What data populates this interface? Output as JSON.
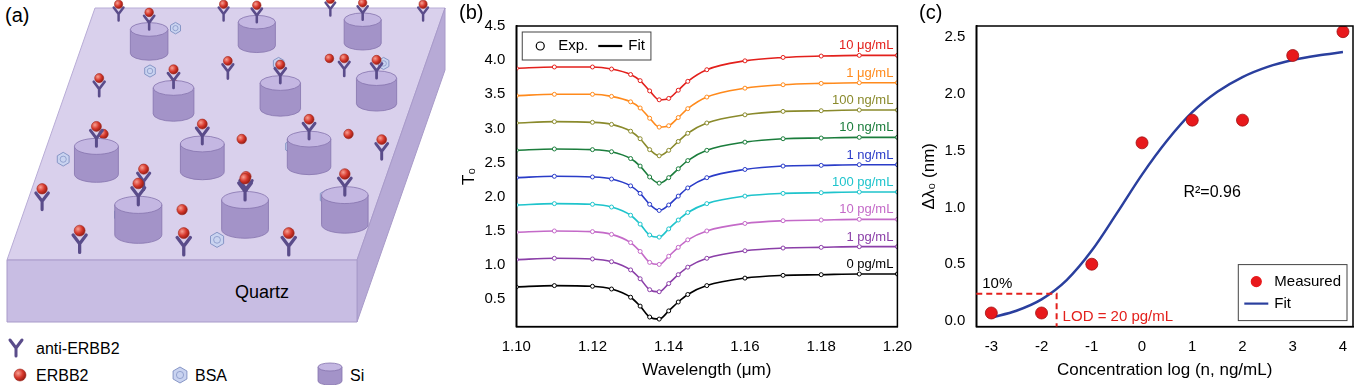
{
  "diagram": {
    "panel_label": "(a)",
    "substrate": "Quartz",
    "legend": [
      {
        "label": "anti-ERBB2"
      },
      {
        "label": "ERBB2"
      },
      {
        "label": "BSA"
      },
      {
        "label": "Si"
      }
    ]
  },
  "chart_data": [
    {
      "type": "line",
      "title": "(b)",
      "x_label": "Wavelength (μm)",
      "y_label": "T₀",
      "x": [
        1.1,
        1.11,
        1.12,
        1.125,
        1.13,
        1.1325,
        1.135,
        1.1375,
        1.14,
        1.1425,
        1.145,
        1.15,
        1.16,
        1.17,
        1.18,
        1.19,
        1.2
      ],
      "xlim": [
        1.1,
        1.2
      ],
      "xticks": [
        {
          "value": 1.1,
          "label": "1.10"
        },
        1.12,
        1.14,
        1.16,
        1.18,
        {
          "value": 1.2,
          "label": "1.20"
        }
      ],
      "ylim": [
        0.1,
        4.5
      ],
      "yticks": [
        0.5,
        {
          "value": 1,
          "label": "1.0"
        },
        1.5,
        {
          "value": 2,
          "label": "2.0"
        },
        2.5,
        {
          "value": 3,
          "label": "3.0"
        },
        3.5,
        {
          "value": 4,
          "label": "4.0"
        },
        4.5
      ],
      "grid": false,
      "legend": "upper left",
      "legend_entries": [
        {
          "name": "Exp.",
          "marker": "circle"
        },
        {
          "name": "Fit",
          "line_style": "solid"
        }
      ],
      "series": [
        {
          "name": "0 pg/mL",
          "color": "#000000",
          "marker": "circle",
          "line_style": "solid",
          "values": [
            0.68,
            0.7,
            0.69,
            0.65,
            0.53,
            0.4,
            0.24,
            0.21,
            0.33,
            0.46,
            0.57,
            0.7,
            0.81,
            0.85,
            0.86,
            0.87,
            0.87
          ]
        },
        {
          "name": "1 pg/mL",
          "color": "#8b3fa8",
          "marker": "circle",
          "line_style": "solid",
          "values": [
            1.08,
            1.1,
            1.09,
            1.05,
            0.93,
            0.8,
            0.64,
            0.61,
            0.73,
            0.86,
            0.97,
            1.1,
            1.21,
            1.25,
            1.26,
            1.27,
            1.27
          ]
        },
        {
          "name": "10 pg/mL",
          "color": "#c46ac8",
          "marker": "circle",
          "line_style": "solid",
          "values": [
            1.48,
            1.5,
            1.49,
            1.45,
            1.33,
            1.2,
            1.04,
            1.01,
            1.13,
            1.26,
            1.37,
            1.5,
            1.61,
            1.65,
            1.66,
            1.67,
            1.67
          ]
        },
        {
          "name": "100 pg/mL",
          "color": "#1fc4cc",
          "marker": "circle",
          "line_style": "solid",
          "values": [
            1.88,
            1.9,
            1.89,
            1.85,
            1.73,
            1.6,
            1.44,
            1.41,
            1.53,
            1.66,
            1.77,
            1.9,
            2.01,
            2.05,
            2.06,
            2.07,
            2.07
          ]
        },
        {
          "name": "1 ng/mL",
          "color": "#2a3cc8",
          "marker": "circle",
          "line_style": "solid",
          "values": [
            2.28,
            2.3,
            2.29,
            2.26,
            2.16,
            2.05,
            1.89,
            1.8,
            1.88,
            2.01,
            2.13,
            2.28,
            2.4,
            2.45,
            2.46,
            2.47,
            2.47
          ]
        },
        {
          "name": "10 ng/mL",
          "color": "#1b7d3c",
          "marker": "circle",
          "line_style": "solid",
          "values": [
            2.68,
            2.7,
            2.69,
            2.66,
            2.56,
            2.45,
            2.29,
            2.2,
            2.28,
            2.41,
            2.53,
            2.68,
            2.8,
            2.85,
            2.86,
            2.87,
            2.87
          ]
        },
        {
          "name": "100 ng/mL",
          "color": "#8a8a2c",
          "marker": "circle",
          "line_style": "solid",
          "values": [
            3.08,
            3.1,
            3.09,
            3.06,
            2.96,
            2.85,
            2.69,
            2.6,
            2.68,
            2.81,
            2.93,
            3.08,
            3.2,
            3.25,
            3.26,
            3.27,
            3.27
          ]
        },
        {
          "name": "1 μg/mL",
          "color": "#ff8a1c",
          "marker": "circle",
          "line_style": "solid",
          "values": [
            3.48,
            3.5,
            3.5,
            3.47,
            3.39,
            3.3,
            3.15,
            3.02,
            3.04,
            3.16,
            3.29,
            3.46,
            3.59,
            3.64,
            3.66,
            3.67,
            3.67
          ]
        },
        {
          "name": "10 μg/mL",
          "color": "#e3201c",
          "marker": "circle",
          "line_style": "solid",
          "values": [
            3.88,
            3.9,
            3.9,
            3.87,
            3.79,
            3.7,
            3.55,
            3.42,
            3.44,
            3.56,
            3.69,
            3.86,
            3.99,
            4.04,
            4.06,
            4.07,
            4.07
          ]
        }
      ]
    },
    {
      "type": "scatter",
      "title": "(c)",
      "x_label": "Concentration log (n, ng/mL)",
      "y_label": "Δλ₀ (nm)",
      "xlim": [
        -3.3,
        4.2
      ],
      "xticks": [
        -3,
        -2,
        -1,
        0,
        1,
        2,
        3,
        4
      ],
      "ylim": [
        -0.05,
        2.6
      ],
      "yticks": [
        {
          "value": 0,
          "label": "0.0"
        },
        0.5,
        {
          "value": 1,
          "label": "1.0"
        },
        1.5,
        {
          "value": 2,
          "label": "2.0"
        },
        2.5
      ],
      "grid": false,
      "legend": "lower right",
      "annotations": [
        "R²=0.96"
      ],
      "lod": {
        "x": -1.7,
        "y": 0.24,
        "label": "LOD = 20 pg/mL",
        "level_label": "10%"
      },
      "series": [
        {
          "name": "Measured",
          "type": "scatter",
          "color": "#e8191c",
          "marker": "circle",
          "x": [
            -3,
            -2,
            -1,
            0,
            1,
            2,
            3,
            4
          ],
          "values": [
            0.07,
            0.07,
            0.5,
            1.57,
            1.77,
            1.77,
            2.34,
            2.55
          ]
        },
        {
          "name": "Fit",
          "type": "line",
          "color": "#2a3f9e",
          "line_style": "solid",
          "x": [
            -3,
            -2.5,
            -2,
            -1.5,
            -1,
            -0.5,
            0,
            0.5,
            1,
            1.5,
            2,
            2.5,
            3,
            3.5,
            4
          ],
          "values": [
            0.03,
            0.09,
            0.19,
            0.36,
            0.62,
            0.95,
            1.29,
            1.59,
            1.84,
            2.02,
            2.15,
            2.24,
            2.3,
            2.34,
            2.37
          ]
        }
      ]
    }
  ]
}
